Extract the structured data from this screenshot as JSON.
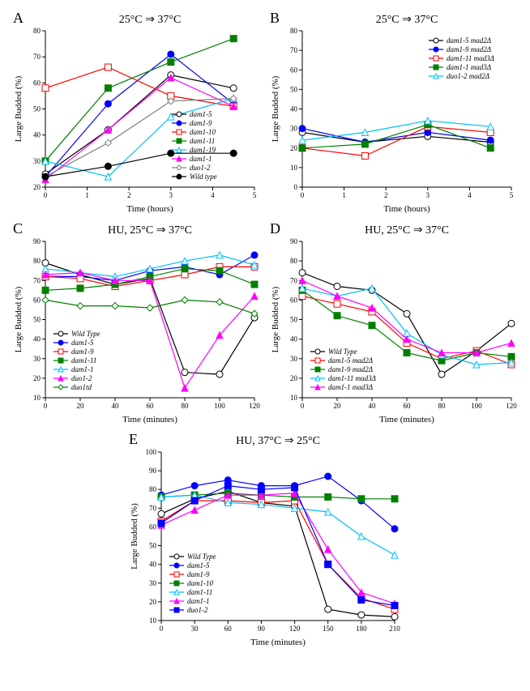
{
  "global": {
    "ylabel": "Large Budded (%)",
    "background_color": "#ffffff",
    "axis_color": "#000000",
    "marker_size": 4,
    "line_width": 1.2
  },
  "panels": {
    "A": {
      "label": "A",
      "title": "25°C ⇒ 37°C",
      "xlabel": "Time (hours)",
      "xlim": [
        0,
        5
      ],
      "ylim": [
        20,
        80
      ],
      "xticks": [
        0,
        1,
        2,
        3,
        4,
        5
      ],
      "yticks": [
        20,
        30,
        40,
        50,
        60,
        70,
        80
      ],
      "legend_pos": "bottom-right",
      "series": [
        {
          "name": "dam1-5",
          "color": "#000000",
          "marker": "circle",
          "fill": "#ffffff",
          "x": [
            0,
            1.5,
            3,
            4.5
          ],
          "y": [
            25,
            42,
            63,
            58
          ]
        },
        {
          "name": "dam1-9",
          "color": "#0000ff",
          "marker": "circle",
          "fill": "#0000ff",
          "x": [
            0,
            1.5,
            3,
            4.5
          ],
          "y": [
            24,
            52,
            71,
            52
          ]
        },
        {
          "name": "dam1-10",
          "color": "#ff0000",
          "marker": "square",
          "fill": "#ffffff",
          "x": [
            0,
            1.5,
            3,
            4.5
          ],
          "y": [
            58,
            66,
            55,
            51
          ]
        },
        {
          "name": "dam1-11",
          "color": "#008000",
          "marker": "square",
          "fill": "#008000",
          "x": [
            0,
            1.5,
            3,
            4.5
          ],
          "y": [
            30,
            58,
            68,
            77
          ]
        },
        {
          "name": "dam1-19",
          "color": "#00bfff",
          "marker": "triangle",
          "fill": "#ffffff",
          "x": [
            0,
            1.5,
            3,
            4.5
          ],
          "y": [
            30,
            24,
            47,
            54
          ]
        },
        {
          "name": "dam1-1",
          "color": "#ff00ff",
          "marker": "triangle",
          "fill": "#ff00ff",
          "x": [
            0,
            1.5,
            3,
            4.5
          ],
          "y": [
            23,
            42,
            62,
            51
          ]
        },
        {
          "name": "duo1-2",
          "color": "#808080",
          "marker": "diamond",
          "fill": "#ffffff",
          "x": [
            0,
            1.5,
            3,
            4.5
          ],
          "y": [
            24,
            37,
            53,
            54
          ]
        },
        {
          "name": "Wild type",
          "color": "#000000",
          "marker": "circle",
          "fill": "#000000",
          "x": [
            0,
            1.5,
            3,
            4.5
          ],
          "y": [
            24,
            28,
            33,
            33
          ]
        }
      ]
    },
    "B": {
      "label": "B",
      "title": "25°C ⇒ 37°C",
      "xlabel": "Time (hours)",
      "xlim": [
        0,
        5
      ],
      "ylim": [
        0,
        80
      ],
      "xticks": [
        0,
        1,
        2,
        3,
        4,
        5
      ],
      "yticks": [
        0,
        10,
        20,
        30,
        40,
        50,
        60,
        70,
        80
      ],
      "legend_pos": "top-right",
      "series": [
        {
          "name": "dam1-5 mad2Δ",
          "color": "#000000",
          "marker": "circle",
          "fill": "#ffffff",
          "x": [
            0,
            1.5,
            3,
            4.5
          ],
          "y": [
            28,
            23,
            26,
            23
          ]
        },
        {
          "name": "dam1-9 mad2Δ",
          "color": "#0000ff",
          "marker": "circle",
          "fill": "#0000ff",
          "x": [
            0,
            1.5,
            3,
            4.5
          ],
          "y": [
            30,
            23,
            28,
            24
          ]
        },
        {
          "name": "dam1-11 mad3Δ",
          "color": "#ff0000",
          "marker": "square",
          "fill": "#ffffff",
          "x": [
            0,
            1.5,
            3,
            4.5
          ],
          "y": [
            20,
            16,
            31,
            28
          ]
        },
        {
          "name": "dam1-1 mad3Δ",
          "color": "#008000",
          "marker": "square",
          "fill": "#008000",
          "x": [
            0,
            1.5,
            3,
            4.5
          ],
          "y": [
            20,
            22,
            32,
            20
          ]
        },
        {
          "name": "duo1-2 mad2Δ",
          "color": "#00bfff",
          "marker": "triangle",
          "fill": "#ffffff",
          "x": [
            0,
            1.5,
            3,
            4.5
          ],
          "y": [
            24,
            28,
            34,
            31
          ]
        }
      ]
    },
    "C": {
      "label": "C",
      "title": "HU, 25°C ⇒ 37°C",
      "xlabel": "Time (minutes)",
      "xlim": [
        0,
        120
      ],
      "ylim": [
        10,
        90
      ],
      "xticks": [
        0,
        20,
        40,
        60,
        80,
        100,
        120
      ],
      "yticks": [
        10,
        20,
        30,
        40,
        50,
        60,
        70,
        80,
        90
      ],
      "legend_pos": "bottom-left",
      "series": [
        {
          "name": "Wild Type",
          "color": "#000000",
          "marker": "circle",
          "fill": "#ffffff",
          "x": [
            0,
            20,
            40,
            60,
            80,
            100,
            120
          ],
          "y": [
            79,
            73,
            68,
            71,
            23,
            22,
            51
          ]
        },
        {
          "name": "dam1-5",
          "color": "#0000ff",
          "marker": "circle",
          "fill": "#0000ff",
          "x": [
            0,
            20,
            40,
            60,
            80,
            100,
            120
          ],
          "y": [
            72,
            72,
            70,
            75,
            77,
            73,
            83
          ]
        },
        {
          "name": "dam1-9",
          "color": "#ff0000",
          "marker": "square",
          "fill": "#ffffff",
          "x": [
            0,
            20,
            40,
            60,
            80,
            100,
            120
          ],
          "y": [
            72,
            71,
            67,
            70,
            73,
            77,
            77
          ]
        },
        {
          "name": "dam1-11",
          "color": "#008000",
          "marker": "square",
          "fill": "#008000",
          "x": [
            0,
            20,
            40,
            60,
            80,
            100,
            120
          ],
          "y": [
            65,
            66,
            68,
            72,
            76,
            75,
            68
          ]
        },
        {
          "name": "dam1-1",
          "color": "#00bfff",
          "marker": "triangle",
          "fill": "#ffffff",
          "x": [
            0,
            20,
            40,
            60,
            80,
            100,
            120
          ],
          "y": [
            76,
            74,
            72,
            76,
            80,
            83,
            78
          ]
        },
        {
          "name": "duo1-2",
          "color": "#ff00ff",
          "marker": "triangle",
          "fill": "#ff00ff",
          "x": [
            0,
            20,
            40,
            60,
            80,
            100,
            120
          ],
          "y": [
            73,
            74,
            70,
            70,
            15,
            42,
            62
          ]
        },
        {
          "name": "duo1td",
          "color": "#008000",
          "marker": "diamond",
          "fill": "#ffffff",
          "x": [
            0,
            20,
            40,
            60,
            80,
            100,
            120
          ],
          "y": [
            60,
            57,
            57,
            56,
            60,
            59,
            53
          ]
        }
      ]
    },
    "D": {
      "label": "D",
      "title": "HU, 25°C ⇒ 37°C",
      "xlabel": "Time (minutes)",
      "xlim": [
        0,
        120
      ],
      "ylim": [
        10,
        90
      ],
      "xticks": [
        0,
        20,
        40,
        60,
        80,
        100,
        120
      ],
      "yticks": [
        10,
        20,
        30,
        40,
        50,
        60,
        70,
        80,
        90
      ],
      "legend_pos": "bottom-left",
      "series": [
        {
          "name": "Wild Type",
          "color": "#000000",
          "marker": "circle",
          "fill": "#ffffff",
          "x": [
            0,
            20,
            40,
            60,
            80,
            100,
            120
          ],
          "y": [
            74,
            67,
            65,
            53,
            22,
            34,
            48
          ]
        },
        {
          "name": "dam1-5 mad2Δ",
          "color": "#ff0000",
          "marker": "square",
          "fill": "#ffffff",
          "x": [
            0,
            20,
            40,
            60,
            80,
            100,
            120
          ],
          "y": [
            62,
            58,
            54,
            38,
            30,
            34,
            27
          ]
        },
        {
          "name": "dam1-9 mad2Δ",
          "color": "#008000",
          "marker": "square",
          "fill": "#008000",
          "x": [
            0,
            20,
            40,
            60,
            80,
            100,
            120
          ],
          "y": [
            65,
            52,
            47,
            33,
            29,
            33,
            31
          ]
        },
        {
          "name": "dam1-11 mad3Δ",
          "color": "#00bfff",
          "marker": "triangle",
          "fill": "#ffffff",
          "x": [
            0,
            20,
            40,
            60,
            80,
            100,
            120
          ],
          "y": [
            66,
            62,
            66,
            43,
            32,
            27,
            28
          ]
        },
        {
          "name": "dam1-1 mad3Δ",
          "color": "#ff00ff",
          "marker": "triangle",
          "fill": "#ff00ff",
          "x": [
            0,
            20,
            40,
            60,
            80,
            100,
            120
          ],
          "y": [
            70,
            62,
            56,
            40,
            33,
            33,
            38
          ]
        }
      ]
    },
    "E": {
      "label": "E",
      "title": "HU, 37°C ⇒ 25°C",
      "xlabel": "Time (minutes)",
      "xlim": [
        0,
        210
      ],
      "ylim": [
        10,
        100
      ],
      "xticks": [
        0,
        30,
        60,
        90,
        120,
        150,
        180,
        210
      ],
      "yticks": [
        10,
        20,
        30,
        40,
        50,
        60,
        70,
        80,
        90,
        100
      ],
      "legend_pos": "bottom-left",
      "series": [
        {
          "name": "Wild Type",
          "color": "#000000",
          "marker": "circle",
          "fill": "#ffffff",
          "x": [
            0,
            30,
            60,
            90,
            120,
            150,
            180,
            210
          ],
          "y": [
            67,
            75,
            79,
            73,
            71,
            16,
            13,
            12
          ]
        },
        {
          "name": "dam1-5",
          "color": "#0000ff",
          "marker": "circle",
          "fill": "#0000ff",
          "x": [
            0,
            30,
            60,
            90,
            120,
            150,
            180,
            210
          ],
          "y": [
            77,
            82,
            85,
            82,
            82,
            87,
            74,
            59
          ]
        },
        {
          "name": "dam1-9",
          "color": "#ff0000",
          "marker": "square",
          "fill": "#ffffff",
          "x": [
            0,
            30,
            60,
            90,
            120,
            150,
            180,
            210
          ],
          "y": [
            63,
            74,
            74,
            73,
            74,
            40,
            22,
            16
          ]
        },
        {
          "name": "dam1-10",
          "color": "#008000",
          "marker": "square",
          "fill": "#008000",
          "x": [
            0,
            30,
            60,
            90,
            120,
            150,
            180,
            210
          ],
          "y": [
            76,
            77,
            78,
            77,
            76,
            76,
            75,
            75
          ]
        },
        {
          "name": "dam1-11",
          "color": "#00bfff",
          "marker": "triangle",
          "fill": "#ffffff",
          "x": [
            0,
            30,
            60,
            90,
            120,
            150,
            180,
            210
          ],
          "y": [
            76,
            77,
            73,
            72,
            70,
            68,
            55,
            45
          ]
        },
        {
          "name": "dam1-1",
          "color": "#ff00ff",
          "marker": "triangle",
          "fill": "#ff00ff",
          "x": [
            0,
            30,
            60,
            90,
            120,
            150,
            180,
            210
          ],
          "y": [
            61,
            69,
            77,
            77,
            78,
            48,
            25,
            19
          ]
        },
        {
          "name": "duo1-2",
          "color": "#0000ff",
          "marker": "square",
          "fill": "#0000ff",
          "x": [
            0,
            30,
            60,
            90,
            120,
            150,
            180,
            210
          ],
          "y": [
            62,
            74,
            82,
            80,
            81,
            40,
            21,
            18
          ]
        }
      ]
    }
  }
}
